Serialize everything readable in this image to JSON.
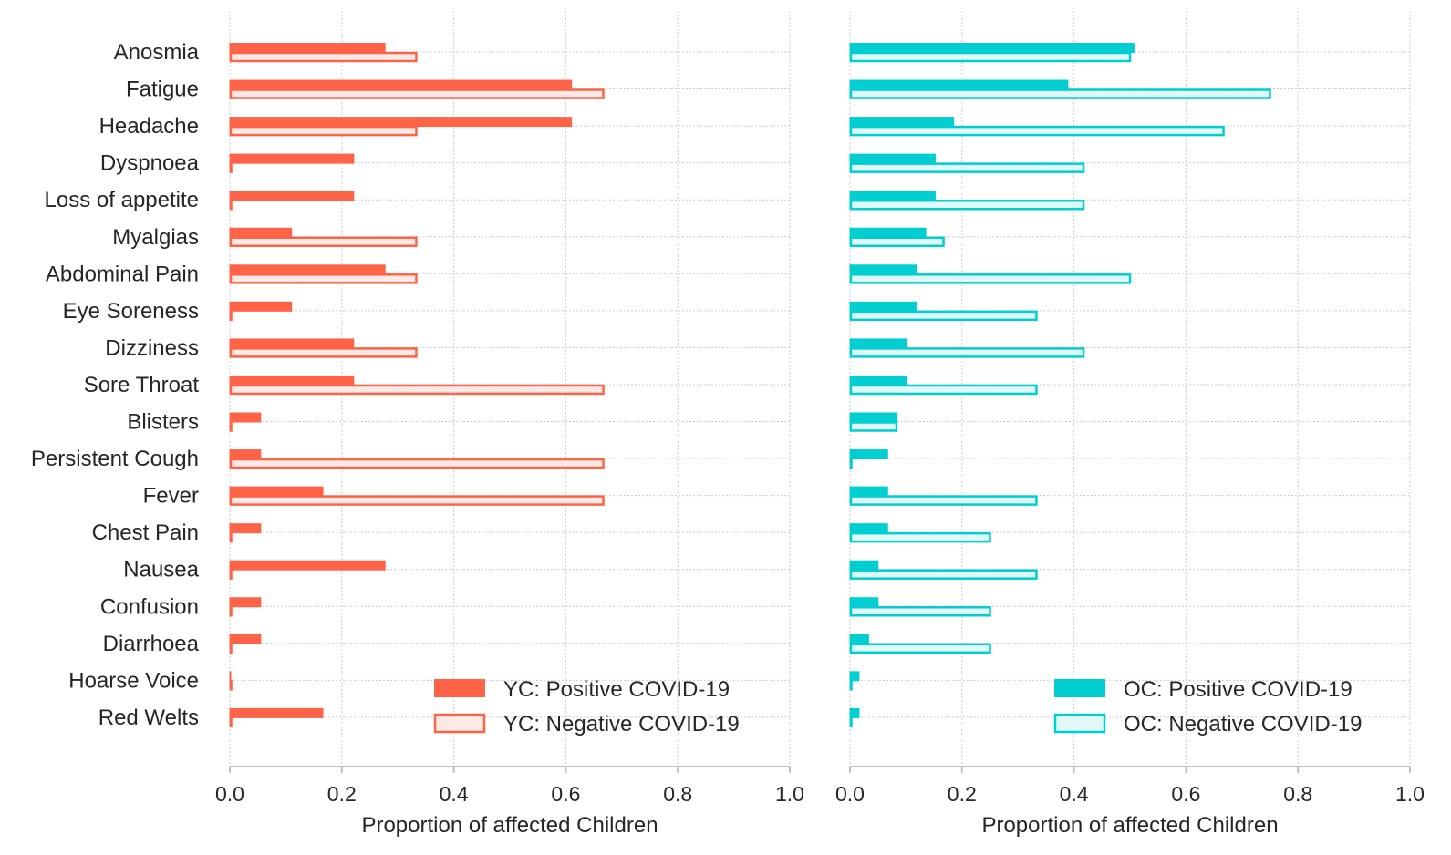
{
  "chart_data": [
    {
      "type": "bar",
      "orientation": "horizontal",
      "panel": "left",
      "accent": "#ff6347",
      "fill_negative": "#fde9e6",
      "categories": [
        "Anosmia",
        "Fatigue",
        "Headache",
        "Dyspnoea",
        "Loss of appetite",
        "Myalgias",
        "Abdominal Pain",
        "Eye Soreness",
        "Dizziness",
        "Sore Throat",
        "Blisters",
        "Persistent Cough",
        "Fever",
        "Chest Pain",
        "Nausea",
        "Confusion",
        "Diarrhoea",
        "Hoarse Voice",
        "Red Welts"
      ],
      "series": [
        {
          "name": "YC: Positive COVID-19",
          "style": "filled",
          "values": [
            0.278,
            0.611,
            0.611,
            0.222,
            0.222,
            0.111,
            0.278,
            0.111,
            0.222,
            0.222,
            0.056,
            0.056,
            0.167,
            0.056,
            0.278,
            0.056,
            0.056,
            0.0,
            0.167
          ]
        },
        {
          "name": "YC: Negative COVID-19",
          "style": "outline",
          "values": [
            0.333,
            0.667,
            0.333,
            0.0,
            0.0,
            0.333,
            0.333,
            0.0,
            0.333,
            0.667,
            0.0,
            0.667,
            0.667,
            0.0,
            0.0,
            0.0,
            0.0,
            0.0,
            0.0
          ]
        }
      ],
      "xlabel": "Proportion of affected Children",
      "xlim": [
        0,
        1.0
      ],
      "xticks": [
        "0.0",
        "0.2",
        "0.4",
        "0.6",
        "0.8",
        "1.0"
      ],
      "grid": true,
      "legend_position": "lower-right"
    },
    {
      "type": "bar",
      "orientation": "horizontal",
      "panel": "right",
      "accent": "#00ced1",
      "fill_negative": "#e0f8f8",
      "categories": [
        "Anosmia",
        "Fatigue",
        "Headache",
        "Dyspnoea",
        "Loss of appetite",
        "Myalgias",
        "Abdominal Pain",
        "Eye Soreness",
        "Dizziness",
        "Sore Throat",
        "Blisters",
        "Persistent Cough",
        "Fever",
        "Chest Pain",
        "Nausea",
        "Confusion",
        "Diarrhoea",
        "Hoarse Voice",
        "Red Welts"
      ],
      "series": [
        {
          "name": "OC: Positive COVID-19",
          "style": "filled",
          "values": [
            0.508,
            0.39,
            0.186,
            0.153,
            0.153,
            0.136,
            0.119,
            0.119,
            0.102,
            0.102,
            0.085,
            0.068,
            0.068,
            0.068,
            0.051,
            0.051,
            0.034,
            0.017,
            0.017
          ]
        },
        {
          "name": "OC: Negative COVID-19",
          "style": "outline",
          "values": [
            0.5,
            0.75,
            0.667,
            0.417,
            0.417,
            0.167,
            0.5,
            0.333,
            0.417,
            0.333,
            0.083,
            0.0,
            0.333,
            0.25,
            0.333,
            0.25,
            0.25,
            0.0,
            0.0
          ]
        }
      ],
      "xlabel": "Proportion of affected Children",
      "xlim": [
        0,
        1.0
      ],
      "xticks": [
        "0.0",
        "0.2",
        "0.4",
        "0.6",
        "0.8",
        "1.0"
      ],
      "grid": true,
      "legend_position": "lower-right"
    }
  ]
}
